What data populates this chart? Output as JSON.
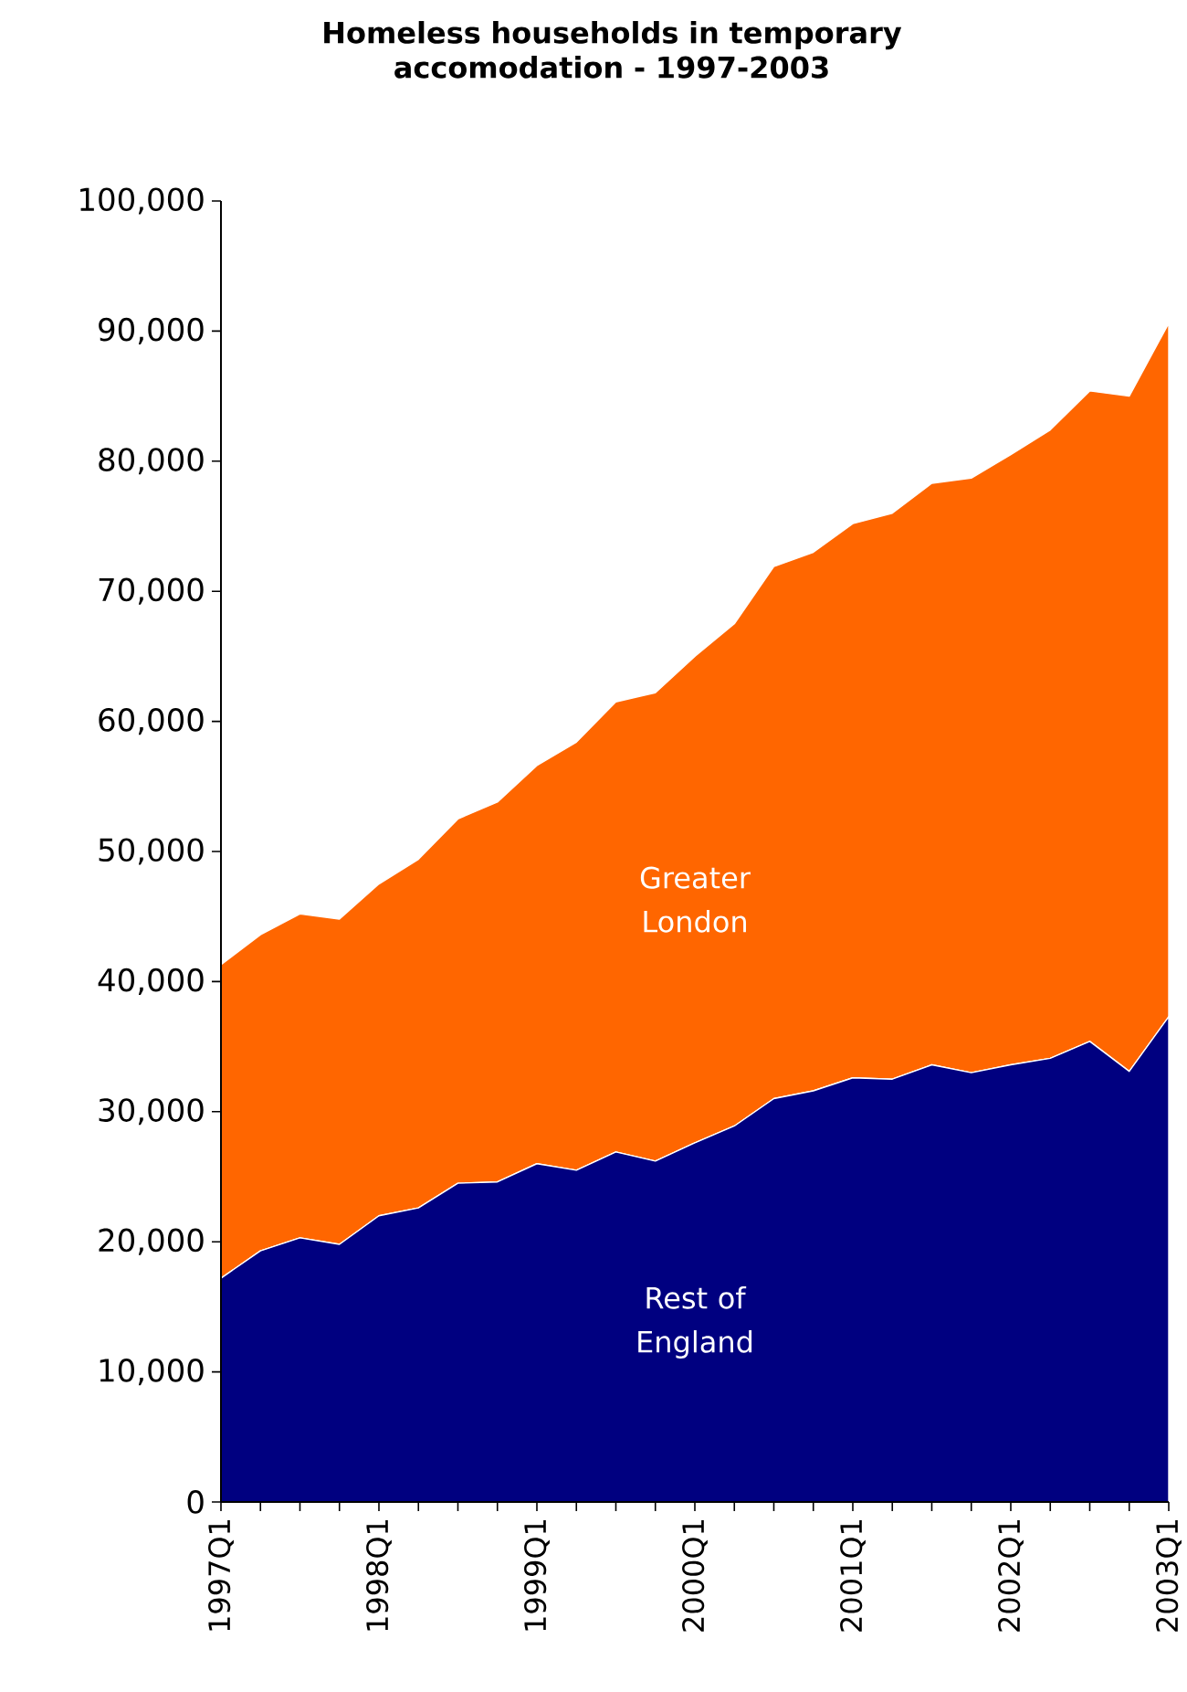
{
  "chart_data": {
    "type": "area",
    "stacked": true,
    "title": "Homeless households in temporary accomodation - 1997-2003",
    "categories": [
      "1997Q1",
      null,
      null,
      null,
      "1998Q1",
      null,
      null,
      null,
      "1999Q1",
      null,
      null,
      null,
      "2000Q1",
      null,
      null,
      null,
      "2001Q1",
      null,
      null,
      null,
      "2002Q1",
      null,
      null,
      null,
      "2003Q1"
    ],
    "series": [
      {
        "name": "Rest of England",
        "color": "#000080",
        "values": [
          17200,
          19300,
          20300,
          19800,
          22000,
          22600,
          24500,
          24600,
          26000,
          25500,
          26900,
          26200,
          27600,
          28900,
          31000,
          31600,
          32600,
          32500,
          33600,
          33000,
          33600,
          34100,
          35400,
          33100,
          37300
        ]
      },
      {
        "name": "Greater London",
        "color": "#ff6600",
        "values": [
          24100,
          24300,
          24900,
          25000,
          25500,
          26800,
          28000,
          29200,
          30600,
          32900,
          34600,
          36000,
          37400,
          38600,
          40900,
          41400,
          42600,
          43500,
          44700,
          45700,
          46900,
          48300,
          50000,
          51900,
          53300
        ]
      }
    ],
    "ylim": [
      0,
      100000
    ],
    "yticks": [
      {
        "value": 0,
        "label": "0"
      },
      {
        "value": 10000,
        "label": "10,000"
      },
      {
        "value": 20000,
        "label": "20,000"
      },
      {
        "value": 30000,
        "label": "30,000"
      },
      {
        "value": 40000,
        "label": "40,000"
      },
      {
        "value": 50000,
        "label": "50,000"
      },
      {
        "value": 60000,
        "label": "60,000"
      },
      {
        "value": 70000,
        "label": "70,000"
      },
      {
        "value": 80000,
        "label": "80,000"
      },
      {
        "value": 90000,
        "label": "90,000"
      },
      {
        "value": 100000,
        "label": "100,000"
      }
    ],
    "grid": false,
    "legend": false
  }
}
